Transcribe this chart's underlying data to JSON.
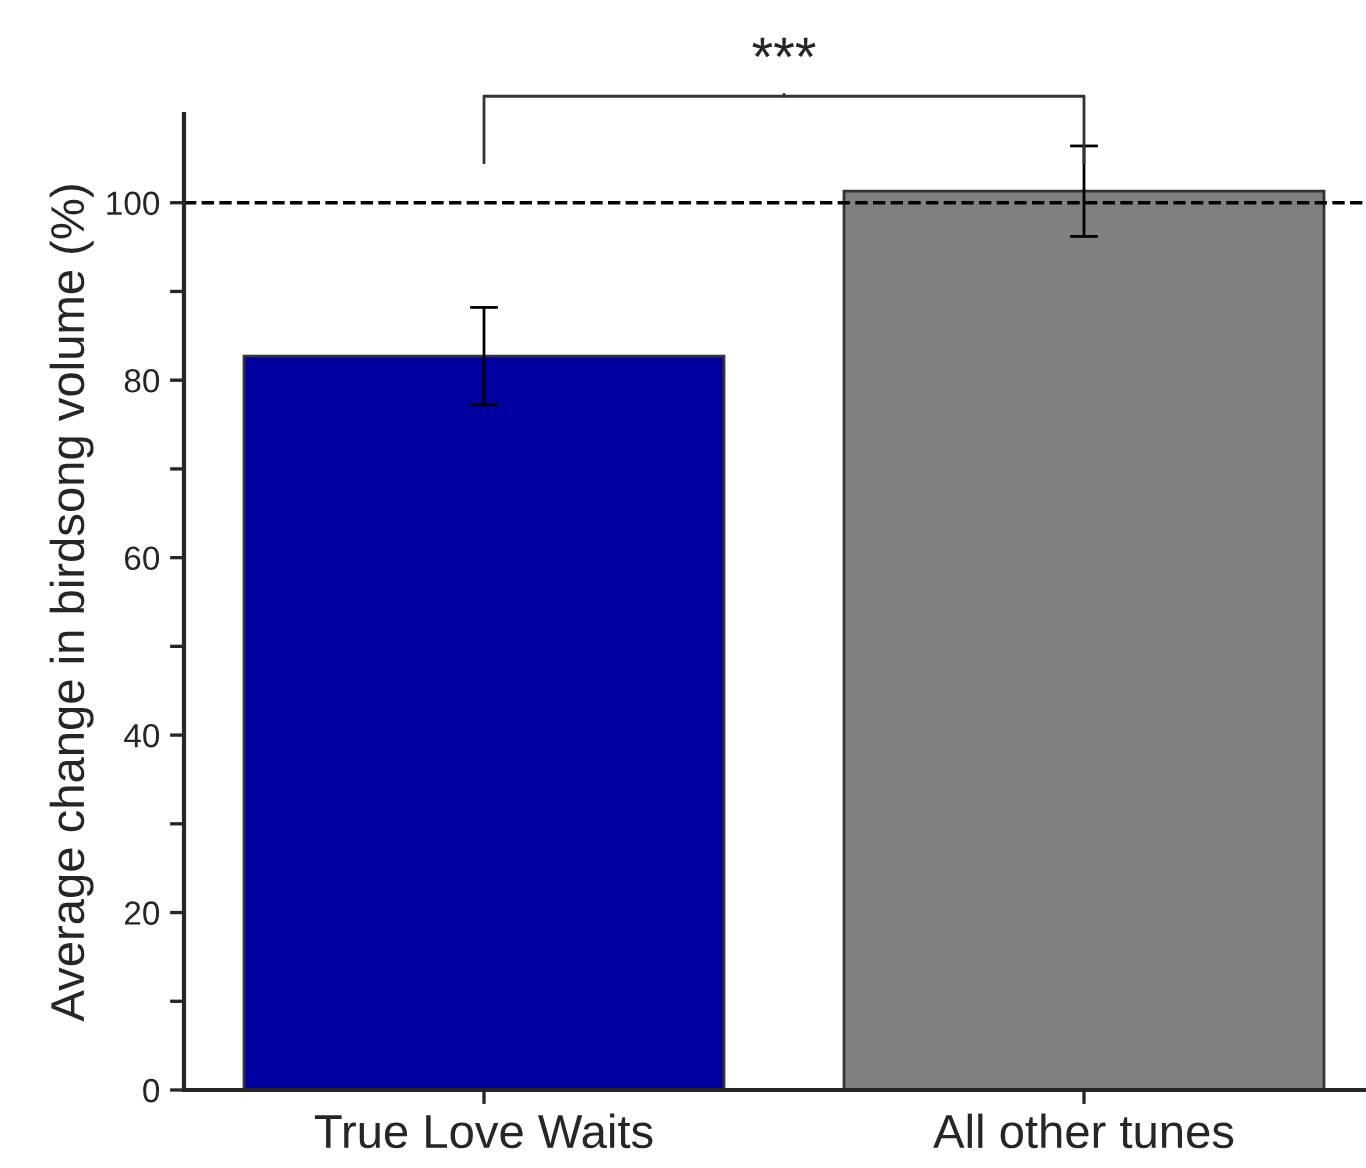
{
  "chart_data": {
    "type": "bar",
    "ylabel": "Average change in birdsong volume (%)",
    "categories": [
      "True Love Waits",
      "All other tunes"
    ],
    "values": [
      82.7,
      101.3
    ],
    "errors": [
      5.5,
      5.1
    ],
    "colors": [
      "#0000a0",
      "#808080"
    ],
    "ylim": [
      0,
      110
    ],
    "yticks": [
      0,
      {
        "value": 10,
        "label": null
      },
      20,
      {
        "value": 30,
        "label": null
      },
      40,
      {
        "value": 50,
        "label": null
      },
      60,
      {
        "value": 70,
        "label": null
      },
      80,
      {
        "value": 90,
        "label": null
      },
      100
    ],
    "ref_lines": [
      {
        "axis": "y",
        "value": 100,
        "line_style": "dashed",
        "color": "#000000"
      }
    ],
    "annotations": [
      "***"
    ],
    "grid": false,
    "legend": false
  }
}
